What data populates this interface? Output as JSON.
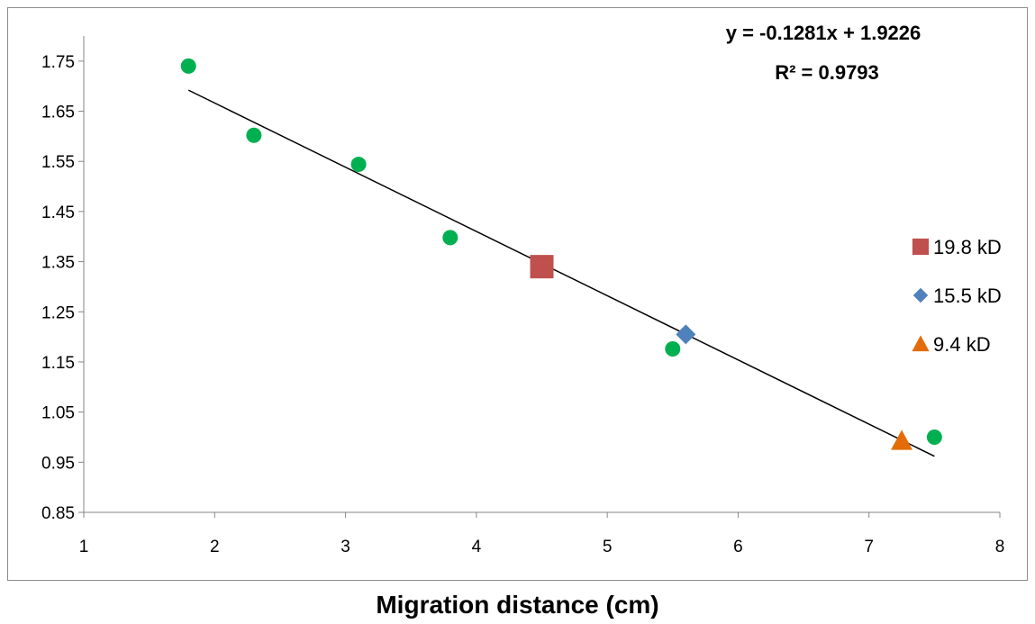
{
  "chart_data": {
    "type": "scatter",
    "title": "",
    "xlabel": "Migration distance (cm)",
    "ylabel": "",
    "xlim": [
      1,
      8
    ],
    "ylim": [
      0.85,
      1.8
    ],
    "x_ticks": [
      1,
      2,
      3,
      4,
      5,
      6,
      7,
      8
    ],
    "y_ticks": [
      "0.85",
      "0.95",
      "1.05",
      "1.15",
      "1.25",
      "1.35",
      "1.45",
      "1.55",
      "1.65",
      "1.75"
    ],
    "grid": false,
    "legend_position": "right",
    "series": [
      {
        "name": "",
        "marker": "circle",
        "color": "#00b050",
        "points": [
          [
            1.8,
            1.74
          ],
          [
            2.3,
            1.602
          ],
          [
            3.1,
            1.544
          ],
          [
            3.8,
            1.398
          ],
          [
            5.5,
            1.176
          ],
          [
            7.5,
            1.0
          ]
        ]
      },
      {
        "name": "19.8 kD",
        "marker": "square",
        "color": "#c0504d",
        "points": [
          [
            4.5,
            1.34
          ]
        ]
      },
      {
        "name": "15.5 kD",
        "marker": "diamond",
        "color": "#4f81bd",
        "points": [
          [
            5.6,
            1.205
          ]
        ]
      },
      {
        "name": "9.4 kD",
        "marker": "triangle",
        "color": "#e36c09",
        "points": [
          [
            7.25,
            0.993
          ]
        ]
      }
    ],
    "trendline": {
      "slope": -0.1281,
      "intercept": 1.9226,
      "x_range": [
        1.8,
        7.5
      ],
      "color": "#000000"
    },
    "annotations": {
      "equation": "y = -0.1281x + 1.9226",
      "r_squared": "R² = 0.9793"
    }
  }
}
